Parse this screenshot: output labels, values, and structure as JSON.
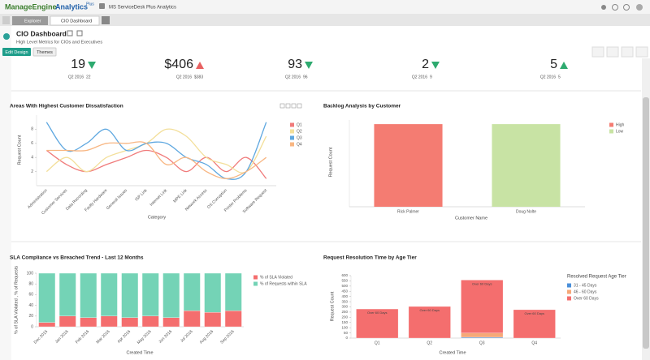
{
  "header": {
    "logo_brand": "ManageEngine",
    "logo_product": "Analytics",
    "logo_edition": "Plus",
    "tabs": [
      "Explorer",
      "CIO Dashboard"
    ],
    "workspace": "MS ServiceDesk Plus Analytics"
  },
  "dashboard": {
    "title": "CIO Dashboard",
    "subtitle": "High Level Metrics for CIOs and Executives",
    "buttons": [
      "Edit Design",
      "Themes"
    ]
  },
  "kpis": [
    {
      "value": "19",
      "trend": "down",
      "color": "#2eaa6f",
      "period": "Q2 2016",
      "previous": "22"
    },
    {
      "value": "$406",
      "trend": "up",
      "color": "#e86161",
      "period": "Q2 2016",
      "previous": "$383"
    },
    {
      "value": "93",
      "trend": "down",
      "color": "#2eaa6f",
      "period": "Q2 2016",
      "previous": "96"
    },
    {
      "value": "2",
      "trend": "down",
      "color": "#2eaa6f",
      "period": "Q2 2016",
      "previous": "9"
    },
    {
      "value": "5",
      "trend": "up",
      "color": "#2eaa6f",
      "period": "Q2 2016",
      "previous": "5"
    }
  ],
  "chart_data": [
    {
      "type": "line",
      "title": "Areas With Highest Customer Dissatisfaction",
      "y_label": "Request Count",
      "x_label": "Category",
      "categories": [
        "Administration",
        "Customer Services",
        "Data Recording",
        "Faulty Hardware",
        "General Issues",
        "ISP Link",
        "Internet Link",
        "MPE Link",
        "Network Access",
        "OS Corruption",
        "Printer Problems",
        "Software Request"
      ],
      "series": [
        {
          "name": "Q1",
          "color": "#f07b7b",
          "values": [
            5,
            3,
            2,
            3,
            4,
            5,
            4,
            2,
            4,
            2,
            4,
            1
          ]
        },
        {
          "name": "Q2",
          "color": "#f3df9a",
          "values": [
            2,
            4,
            2,
            4,
            5,
            6,
            8,
            7,
            4,
            3,
            2,
            7
          ]
        },
        {
          "name": "Q3",
          "color": "#5fa8e0",
          "values": [
            9,
            5,
            6,
            8,
            5,
            6,
            6,
            4,
            3,
            1,
            2,
            9
          ]
        },
        {
          "name": "Q4",
          "color": "#f8b682",
          "values": [
            5,
            5,
            5,
            6,
            6,
            6,
            3,
            4,
            2,
            1,
            2,
            4
          ]
        }
      ],
      "ylim": [
        0,
        10
      ],
      "yticks": [
        2,
        4,
        6,
        8
      ]
    },
    {
      "type": "bar",
      "title": "Backlog Analysis by Customer",
      "y_label": "Request Count",
      "x_label": "Customer Name",
      "categories": [
        "Rick Palmer",
        "Doug Nolte"
      ],
      "series": [
        {
          "name": "High",
          "color": "#f47c72",
          "values": [
            1,
            null
          ]
        },
        {
          "name": "Low",
          "color": "#c8e3a4",
          "values": [
            null,
            1
          ]
        }
      ],
      "ylim": [
        0,
        1.05
      ]
    },
    {
      "type": "stacked_bar",
      "title": "SLA Compliance vs Breached Trend - Last 12 Months",
      "y_label": "% of SLA Violated , % of Requests",
      "x_label": "Created Time",
      "categories": [
        "Dec 2015",
        "Jan 2016",
        "Feb 2016",
        "Mar 2016",
        "Apr 2016",
        "May 2016",
        "Jun 2016",
        "Jul 2016",
        "Aug 2016",
        "Sep 2016"
      ],
      "series": [
        {
          "name": "% of SLA Violated",
          "color": "#f46e6e",
          "values": [
            8,
            20,
            17,
            20,
            17,
            20,
            17,
            30,
            27,
            30
          ]
        },
        {
          "name": "% of Requests within SLA",
          "color": "#74d3b6",
          "values": [
            92,
            80,
            83,
            80,
            83,
            80,
            83,
            70,
            73,
            70
          ]
        }
      ],
      "ylim": [
        0,
        100
      ],
      "yticks": [
        0,
        20,
        40,
        60,
        80,
        100
      ]
    },
    {
      "type": "stacked_bar",
      "title": "Request Resolution Time by Age Tier",
      "y_label": "Request Count",
      "x_label": "Created Time",
      "legend_title": "Resolved Request Age Tier",
      "segment_labels": true,
      "categories": [
        "Q1",
        "Q2",
        "Q3",
        "Q4"
      ],
      "series": [
        {
          "name": "31 - 45 Days",
          "color": "#4a8fd9",
          "values": [
            0,
            0,
            8,
            0
          ]
        },
        {
          "name": "46 - 60 Days",
          "color": "#f6a878",
          "values": [
            0,
            0,
            40,
            0
          ]
        },
        {
          "name": "Over 60 Days",
          "color": "#f46e6e",
          "values": [
            280,
            304,
            510,
            273
          ]
        }
      ],
      "ylim": [
        0,
        600
      ],
      "yticks": [
        0,
        50,
        100,
        150,
        200,
        250,
        300,
        350,
        400,
        450,
        500,
        550,
        600
      ]
    }
  ]
}
